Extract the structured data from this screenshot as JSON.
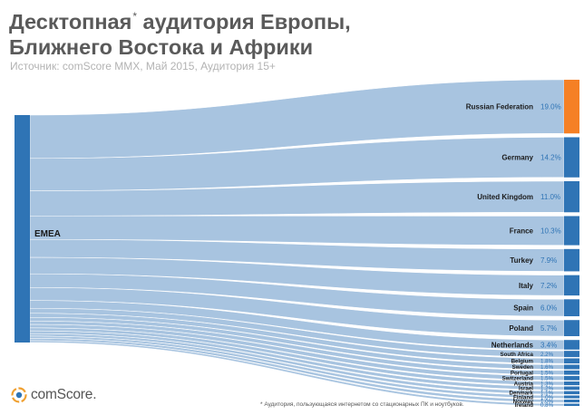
{
  "header": {
    "title_part1": "Десктопная",
    "title_star": "*",
    "title_part2": " аудитория Европы,",
    "title_line2": "Ближнего Востока и Африки",
    "subtitle": "Источник: comScore MMX, Май 2015, Аудитория 15+"
  },
  "chart_data": {
    "type": "sankey",
    "source": "EMEA",
    "value_unit": "%",
    "flows": [
      {
        "name": "Russian Federation",
        "label": "19.0%",
        "value": 19.0,
        "highlight": true
      },
      {
        "name": "Germany",
        "label": "14.2%",
        "value": 14.2
      },
      {
        "name": "United Kingdom",
        "label": "11.0%",
        "value": 11.0
      },
      {
        "name": "France",
        "label": "10.3%",
        "value": 10.3
      },
      {
        "name": "Turkey",
        "label": "7.9%",
        "value": 7.9
      },
      {
        "name": "Italy",
        "label": "7.2%",
        "value": 7.2
      },
      {
        "name": "Spain",
        "label": "6.0%",
        "value": 6.0
      },
      {
        "name": "Poland",
        "label": "5.7%",
        "value": 5.7
      },
      {
        "name": "Netherlands",
        "label": "3.4%",
        "value": 3.4
      },
      {
        "name": "South Africa",
        "label": "2.2%",
        "value": 2.2
      },
      {
        "name": "Belgium",
        "label": "1.8%",
        "value": 1.8
      },
      {
        "name": "Sweden",
        "label": "1.6%",
        "value": 1.6
      },
      {
        "name": "Portugal",
        "label": "1.5%",
        "value": 1.5
      },
      {
        "name": "Switzerland",
        "label": "1.5%",
        "value": 1.5
      },
      {
        "name": "Austria",
        "label": "1.3%",
        "value": 1.3
      },
      {
        "name": "Israel",
        "label": "1.2%",
        "value": 1.2
      },
      {
        "name": "Denmark",
        "label": "1.1%",
        "value": 1.1
      },
      {
        "name": "Finland",
        "label": "1.0%",
        "value": 1.0
      },
      {
        "name": "Norway",
        "label": "1.0%",
        "value": 1.0
      },
      {
        "name": "Ireland",
        "label": "0.8%",
        "value": 0.8
      }
    ],
    "colors": {
      "source_bar": "#2f74b5",
      "target_bar": "#2f74b5",
      "highlight_bar": "#f58025",
      "flow": "#a8c4e0",
      "value_label": "#2f74b5",
      "country_label": "#1a1a1a"
    }
  },
  "logo": {
    "text": "comScore",
    "trademark": ".",
    "icon": "comscore-logo-icon"
  },
  "footnote": "* Аудитория, пользующаяся интернетом со стационарных ПК и ноутбуков."
}
